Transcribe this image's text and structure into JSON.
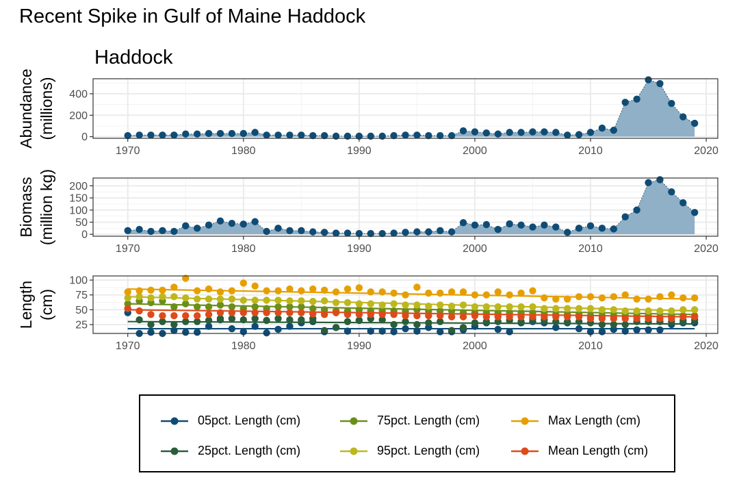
{
  "title": "Recent Spike in Gulf of Maine Haddock",
  "subtitle": "Haddock",
  "colors": {
    "area_fill": "#8fb0c6",
    "point": "#0f4c75",
    "grid_major": "#ebebeb",
    "grid_minor": "#f3f3f3",
    "panel_border": "#333333"
  },
  "chart_data": [
    {
      "type": "area",
      "ylabel_lines": [
        "Abundance",
        "(millions)"
      ],
      "xlim": [
        1967,
        2021
      ],
      "ylim": [
        -15,
        540
      ],
      "x_ticks": [
        1970,
        1980,
        1990,
        2000,
        2010,
        2020
      ],
      "y_ticks": [
        0,
        200,
        400
      ],
      "x": [
        1970,
        1971,
        1972,
        1973,
        1974,
        1975,
        1976,
        1977,
        1978,
        1979,
        1980,
        1981,
        1982,
        1983,
        1984,
        1985,
        1986,
        1987,
        1988,
        1989,
        1990,
        1991,
        1992,
        1993,
        1994,
        1995,
        1996,
        1997,
        1998,
        1999,
        2000,
        2001,
        2002,
        2003,
        2004,
        2005,
        2006,
        2007,
        2008,
        2009,
        2010,
        2011,
        2012,
        2013,
        2014,
        2015,
        2016,
        2017,
        2018,
        2019
      ],
      "values": [
        10,
        15,
        15,
        15,
        15,
        25,
        25,
        30,
        30,
        30,
        30,
        40,
        15,
        15,
        15,
        15,
        10,
        10,
        5,
        5,
        5,
        5,
        5,
        10,
        15,
        15,
        10,
        10,
        10,
        55,
        45,
        35,
        25,
        40,
        40,
        45,
        45,
        40,
        15,
        20,
        40,
        80,
        60,
        320,
        350,
        530,
        495,
        310,
        185,
        125
      ]
    },
    {
      "type": "area",
      "ylabel_lines": [
        "Biomass",
        "(million kg)"
      ],
      "xlim": [
        1967,
        2021
      ],
      "ylim": [
        -8,
        232
      ],
      "x_ticks": [
        1970,
        1980,
        1990,
        2000,
        2010,
        2020
      ],
      "y_ticks": [
        0,
        50,
        100,
        150,
        200
      ],
      "x": [
        1970,
        1971,
        1972,
        1973,
        1974,
        1975,
        1976,
        1977,
        1978,
        1979,
        1980,
        1981,
        1982,
        1983,
        1984,
        1985,
        1986,
        1987,
        1988,
        1989,
        1990,
        1991,
        1992,
        1993,
        1994,
        1995,
        1996,
        1997,
        1998,
        1999,
        2000,
        2001,
        2002,
        2003,
        2004,
        2005,
        2006,
        2007,
        2008,
        2009,
        2010,
        2011,
        2012,
        2013,
        2014,
        2015,
        2016,
        2017,
        2018,
        2019
      ],
      "values": [
        15,
        20,
        12,
        15,
        12,
        35,
        25,
        38,
        55,
        45,
        42,
        52,
        12,
        25,
        15,
        15,
        10,
        8,
        5,
        5,
        3,
        3,
        3,
        5,
        8,
        10,
        10,
        15,
        10,
        48,
        38,
        40,
        20,
        43,
        38,
        30,
        38,
        30,
        8,
        25,
        35,
        25,
        22,
        72,
        100,
        213,
        225,
        175,
        130,
        90
      ]
    },
    {
      "type": "line",
      "ylabel_lines": [
        "Length",
        "(cm)"
      ],
      "xlim": [
        1967,
        2021
      ],
      "ylim": [
        10,
        107
      ],
      "x_ticks": [
        1970,
        1980,
        1990,
        2000,
        2010,
        2020
      ],
      "y_ticks": [
        25,
        50,
        75,
        100
      ],
      "x": [
        1970,
        1971,
        1972,
        1973,
        1974,
        1975,
        1976,
        1977,
        1978,
        1979,
        1980,
        1981,
        1982,
        1983,
        1984,
        1985,
        1986,
        1987,
        1988,
        1989,
        1990,
        1991,
        1992,
        1993,
        1994,
        1995,
        1996,
        1997,
        1998,
        1999,
        2000,
        2001,
        2002,
        2003,
        2004,
        2005,
        2006,
        2007,
        2008,
        2009,
        2010,
        2011,
        2012,
        2013,
        2014,
        2015,
        2016,
        2017,
        2018,
        2019
      ],
      "series": [
        {
          "name": "05pct. Length (cm)",
          "color": "#0f4c75",
          "trend": [
            18,
            18
          ],
          "values": [
            45,
            10,
            12,
            10,
            15,
            12,
            12,
            22,
            33,
            18,
            13,
            22,
            11,
            17,
            22,
            28,
            30,
            13,
            20,
            14,
            32,
            14,
            14,
            13,
            18,
            14,
            20,
            13,
            13,
            16,
            22,
            28,
            17,
            13,
            28,
            30,
            28,
            20,
            28,
            18,
            13,
            13,
            17,
            14,
            16,
            16,
            16,
            25,
            28,
            28
          ]
        },
        {
          "name": "25pct. Length (cm)",
          "color": "#2a5e3a",
          "trend": [
            30,
            26
          ],
          "values": [
            52,
            33,
            25,
            30,
            25,
            30,
            30,
            32,
            35,
            35,
            33,
            35,
            32,
            35,
            33,
            33,
            35,
            15,
            20,
            30,
            32,
            35,
            33,
            25,
            30,
            25,
            28,
            30,
            15,
            20,
            28,
            30,
            30,
            32,
            30,
            35,
            33,
            30,
            30,
            30,
            28,
            25,
            25,
            25,
            30,
            30,
            30,
            30,
            32,
            33
          ]
        },
        {
          "name": "75pct. Length (cm)",
          "color": "#6b8e1a",
          "trend": [
            60,
            42
          ],
          "values": [
            60,
            65,
            62,
            65,
            55,
            60,
            55,
            55,
            58,
            55,
            52,
            55,
            52,
            55,
            55,
            55,
            52,
            50,
            48,
            48,
            50,
            48,
            48,
            48,
            48,
            50,
            48,
            48,
            48,
            45,
            45,
            45,
            45,
            45,
            45,
            45,
            45,
            42,
            42,
            42,
            40,
            40,
            40,
            40,
            40,
            40,
            38,
            40,
            40,
            40
          ]
        },
        {
          "name": "95pct. Length (cm)",
          "color": "#bdb71e",
          "trend": [
            72,
            48
          ],
          "values": [
            70,
            72,
            70,
            72,
            72,
            70,
            68,
            68,
            68,
            68,
            66,
            66,
            66,
            66,
            65,
            65,
            64,
            65,
            62,
            62,
            60,
            60,
            58,
            60,
            58,
            58,
            56,
            58,
            56,
            58,
            55,
            55,
            55,
            55,
            55,
            55,
            52,
            52,
            52,
            52,
            52,
            50,
            50,
            48,
            48,
            48,
            48,
            48,
            50,
            50
          ]
        },
        {
          "name": "Max Length (cm)",
          "color": "#e69f00",
          "trend": [
            85,
            68
          ],
          "values": [
            80,
            82,
            83,
            83,
            88,
            103,
            82,
            85,
            80,
            82,
            95,
            90,
            82,
            82,
            85,
            82,
            85,
            83,
            80,
            85,
            87,
            80,
            80,
            78,
            75,
            88,
            78,
            78,
            80,
            80,
            75,
            75,
            80,
            75,
            78,
            82,
            70,
            68,
            68,
            72,
            72,
            70,
            72,
            75,
            68,
            68,
            72,
            75,
            70,
            70
          ]
        },
        {
          "name": "Mean Length (cm)",
          "color": "#dd4b1a",
          "trend": [
            50,
            38
          ],
          "values": [
            52,
            48,
            42,
            40,
            40,
            40,
            40,
            42,
            45,
            45,
            45,
            45,
            45,
            45,
            45,
            45,
            43,
            42,
            45,
            42,
            42,
            42,
            42,
            42,
            40,
            40,
            40,
            40,
            38,
            38,
            40,
            38,
            38,
            38,
            38,
            38,
            38,
            38,
            38,
            38,
            35,
            35,
            35,
            35,
            35,
            35,
            35,
            35,
            38,
            38
          ]
        }
      ]
    }
  ],
  "legend_columns": [
    [
      "05pct. Length (cm)",
      "25pct. Length (cm)"
    ],
    [
      "75pct. Length (cm)",
      "95pct. Length (cm)"
    ],
    [
      "Max Length (cm)",
      "Mean Length (cm)"
    ]
  ]
}
